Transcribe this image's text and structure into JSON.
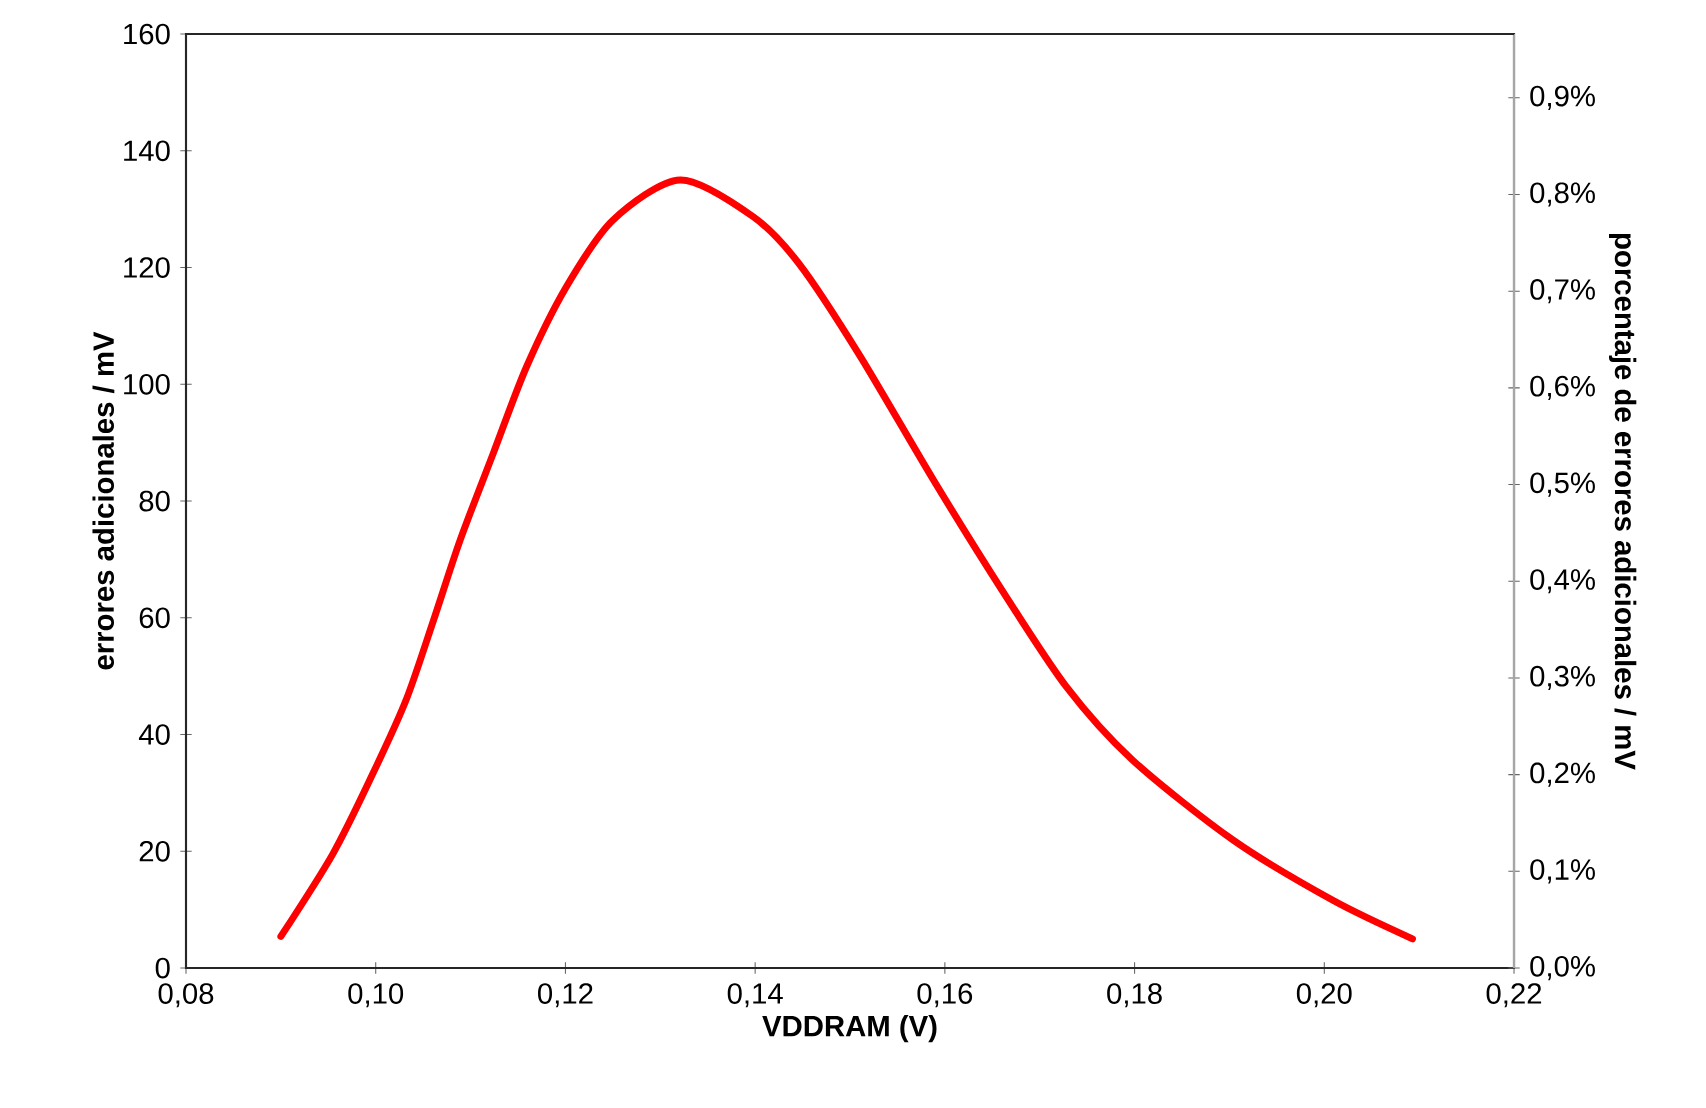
{
  "chart_data": {
    "type": "line",
    "xlabel": "VDDRAM (V)",
    "ylabel": "errores adicionales / mV",
    "y2label": "porcentaje de errores adicionales / mV",
    "xlim": [
      0.08,
      0.22
    ],
    "xticks": [
      {
        "value": 0.08,
        "label": "0,08"
      },
      {
        "value": 0.1,
        "label": "0,10"
      },
      {
        "value": 0.12,
        "label": "0,12"
      },
      {
        "value": 0.14,
        "label": "0,14"
      },
      {
        "value": 0.16,
        "label": "0,16"
      },
      {
        "value": 0.18,
        "label": "0,18"
      },
      {
        "value": 0.2,
        "label": "0,20"
      },
      {
        "value": 0.22,
        "label": "0,22"
      }
    ],
    "ylim": [
      0,
      160
    ],
    "yticks": [
      0,
      20,
      40,
      60,
      80,
      100,
      120,
      140,
      160
    ],
    "y2lim": [
      0,
      0.966
    ],
    "y2ticks": [
      {
        "value": 0.0,
        "label": "0,0%"
      },
      {
        "value": 0.1,
        "label": "0,1%"
      },
      {
        "value": 0.2,
        "label": "0,2%"
      },
      {
        "value": 0.3,
        "label": "0,3%"
      },
      {
        "value": 0.4,
        "label": "0,4%"
      },
      {
        "value": 0.5,
        "label": "0,5%"
      },
      {
        "value": 0.6,
        "label": "0,6%"
      },
      {
        "value": 0.7,
        "label": "0,7%"
      },
      {
        "value": 0.8,
        "label": "0,8%"
      },
      {
        "value": 0.9,
        "label": "0,9%"
      }
    ],
    "grid": false,
    "marker": "none",
    "line_style": "solid",
    "series": [
      {
        "color": "#ff0000",
        "x": [
          0.09,
          0.0955,
          0.0997,
          0.1032,
          0.1061,
          0.1089,
          0.1124,
          0.1159,
          0.1201,
          0.125,
          0.1321,
          0.1398,
          0.1447,
          0.151,
          0.1588,
          0.1658,
          0.1728,
          0.1798,
          0.1904,
          0.2009,
          0.2093
        ],
        "values": [
          5.4,
          19.6,
          33.3,
          45.9,
          59.6,
          73.3,
          88.2,
          103,
          116.7,
          128.1,
          135,
          128.7,
          120.5,
          105,
          83.6,
          65.3,
          48.2,
          35.6,
          21.9,
          11.6,
          5.0
        ]
      }
    ]
  }
}
